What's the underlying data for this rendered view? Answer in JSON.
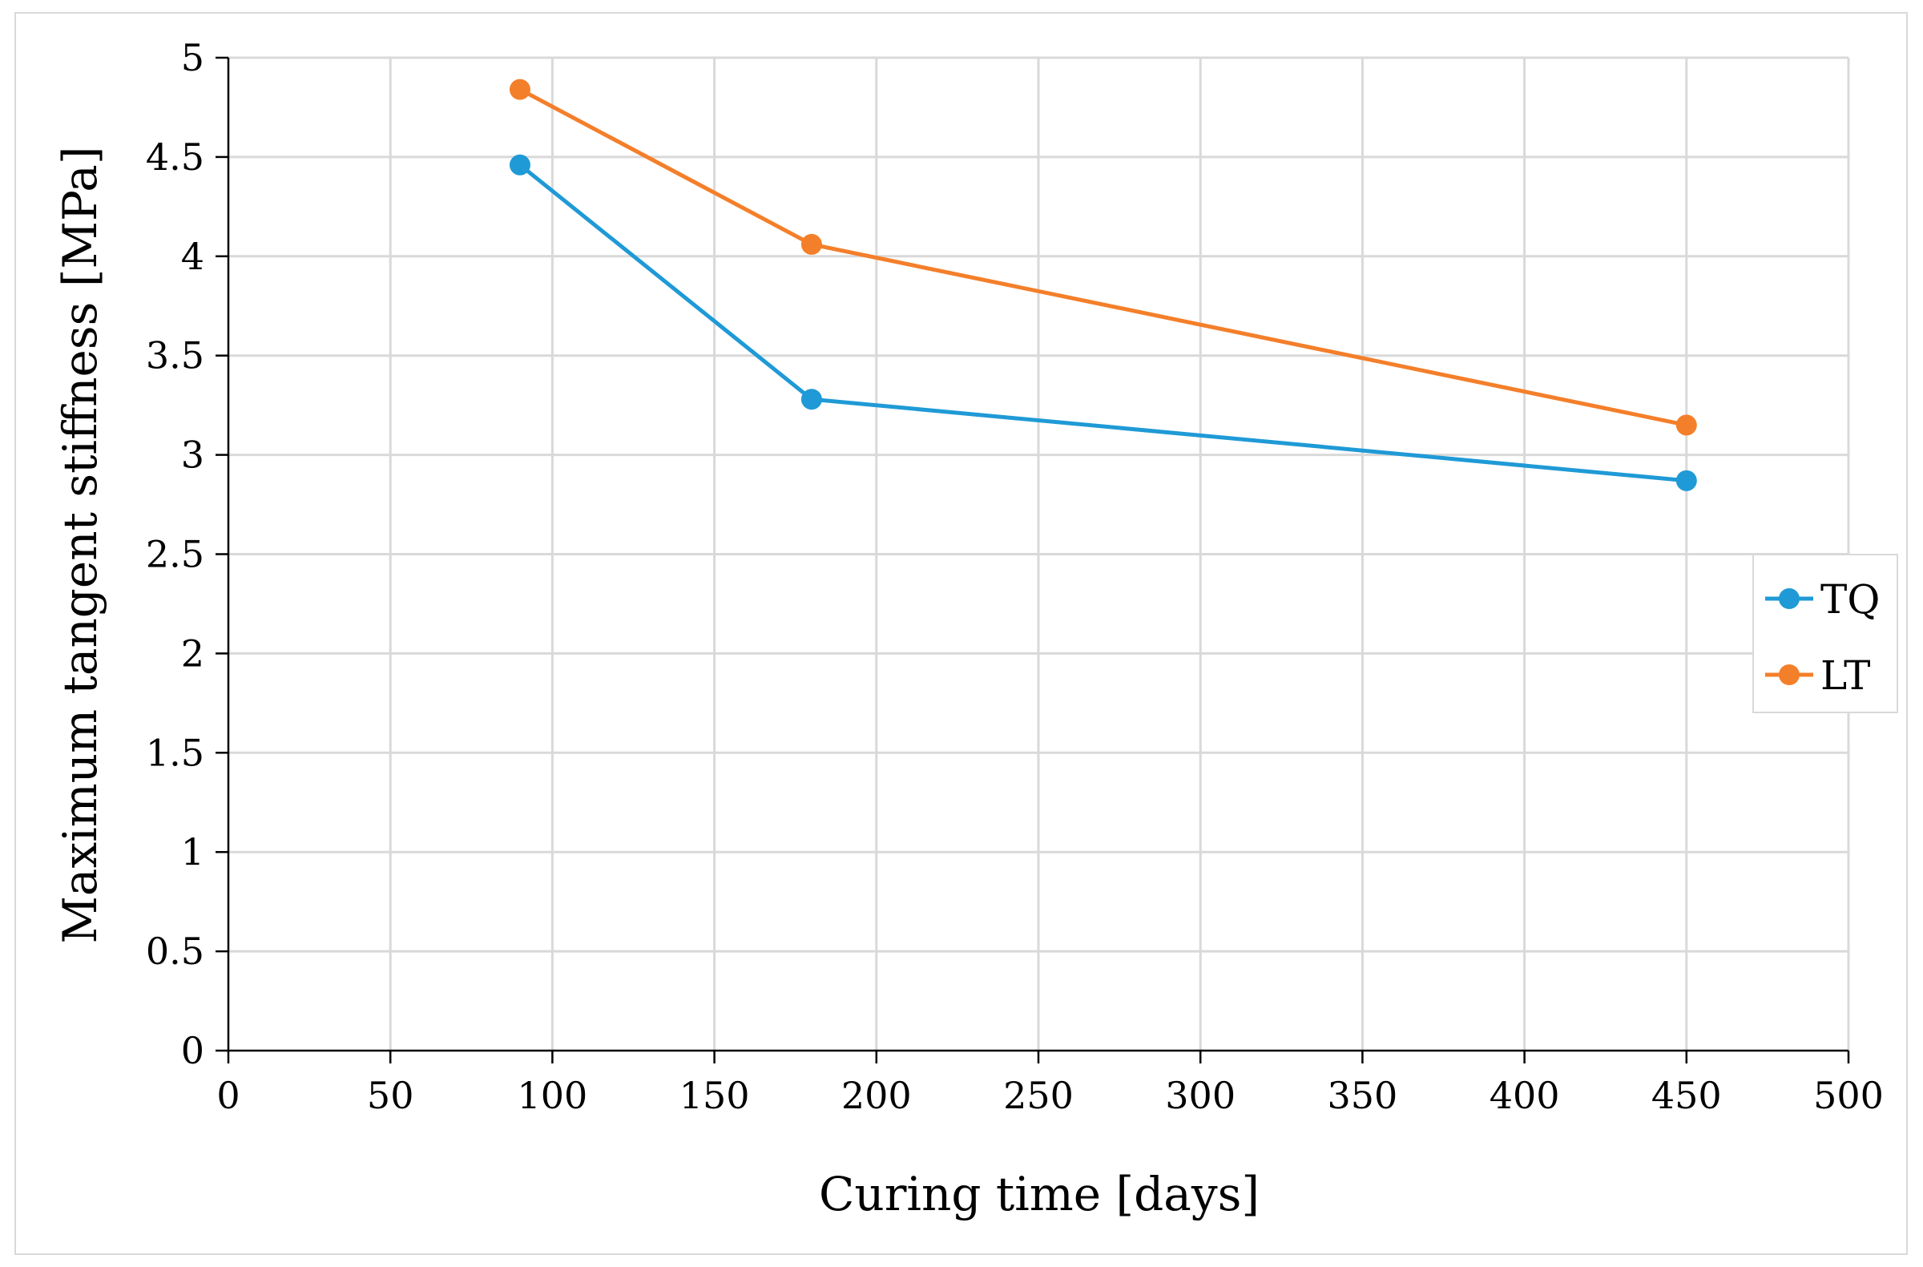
{
  "chart_data": {
    "type": "line",
    "title": "",
    "xlabel": "Curing time   [days]",
    "ylabel": "Maximum tangent stiffness   [MPa]",
    "xlim": [
      0,
      500
    ],
    "ylim": [
      0,
      5
    ],
    "xticks": [
      0,
      50,
      100,
      150,
      200,
      250,
      300,
      350,
      400,
      450,
      500
    ],
    "yticks": [
      0,
      0.5,
      1,
      1.5,
      2,
      2.5,
      3,
      3.5,
      4,
      4.5,
      5
    ],
    "grid": true,
    "legend_position": "right",
    "series": [
      {
        "name": "TQ",
        "color": "#1f9ad6",
        "x": [
          90,
          180,
          450
        ],
        "y": [
          4.46,
          3.28,
          2.87
        ]
      },
      {
        "name": "LT",
        "color": "#f47f2a",
        "x": [
          90,
          180,
          450
        ],
        "y": [
          4.84,
          4.06,
          3.15
        ]
      }
    ]
  }
}
